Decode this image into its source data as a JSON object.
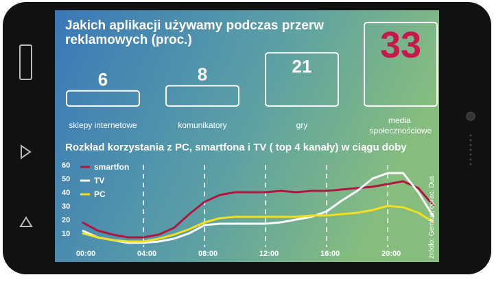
{
  "chart_data": [
    {
      "type": "box",
      "title": "Jakich aplikacji używamy podczas przerw reklamowych (proc.)",
      "categories": [
        "sklepy internetowe",
        "komunikatory",
        "gry",
        "media społecznościowe"
      ],
      "values": [
        6,
        8,
        21,
        33
      ],
      "color": "#ffffff",
      "label_colors": [
        "#ffffff",
        "#ffffff",
        "#ffffff",
        "#c8174a"
      ]
    },
    {
      "type": "line",
      "title": "Rozkład korzystania z PC, smartfona i TV ( top 4 kanały) w ciągu doby",
      "x": [
        0,
        1,
        2,
        3,
        4,
        5,
        6,
        7,
        8,
        9,
        10,
        11,
        12,
        13,
        14,
        15,
        16,
        17,
        18,
        19,
        20,
        21,
        22,
        23
      ],
      "series": [
        {
          "name": "smartfon",
          "color": "#b0163f",
          "values": [
            18,
            12,
            9,
            7,
            7,
            9,
            14,
            24,
            33,
            38,
            40,
            40,
            40,
            41,
            40,
            41,
            41,
            42,
            43,
            44,
            46,
            48,
            43,
            30
          ]
        },
        {
          "name": "TV",
          "color": "#ffffff",
          "values": [
            12,
            7,
            5,
            3,
            3,
            4,
            6,
            10,
            16,
            17,
            17,
            17,
            17,
            18,
            20,
            22,
            26,
            34,
            41,
            50,
            54,
            54,
            40,
            22
          ]
        },
        {
          "name": "PC",
          "color": "#f2e01c",
          "values": [
            10,
            7,
            5,
            4,
            4,
            6,
            9,
            13,
            18,
            21,
            22,
            22,
            22,
            22,
            22,
            23,
            23,
            24,
            25,
            27,
            30,
            29,
            25,
            18
          ]
        }
      ],
      "xlim": [
        0,
        23
      ],
      "xticks": [
        {
          "value": 0,
          "label": "00:00"
        },
        {
          "value": 4,
          "label": "04:00"
        },
        {
          "value": 8,
          "label": "08:00"
        },
        {
          "value": 12,
          "label": "12:00"
        },
        {
          "value": 16,
          "label": "16:00"
        },
        {
          "value": 20,
          "label": "20:00"
        }
      ],
      "ylim": [
        0,
        60
      ],
      "yticks": [
        10,
        20,
        30,
        40,
        50,
        60
      ],
      "legend": "top-left",
      "source": "źródło: Gemius, oprac. Dus"
    }
  ]
}
